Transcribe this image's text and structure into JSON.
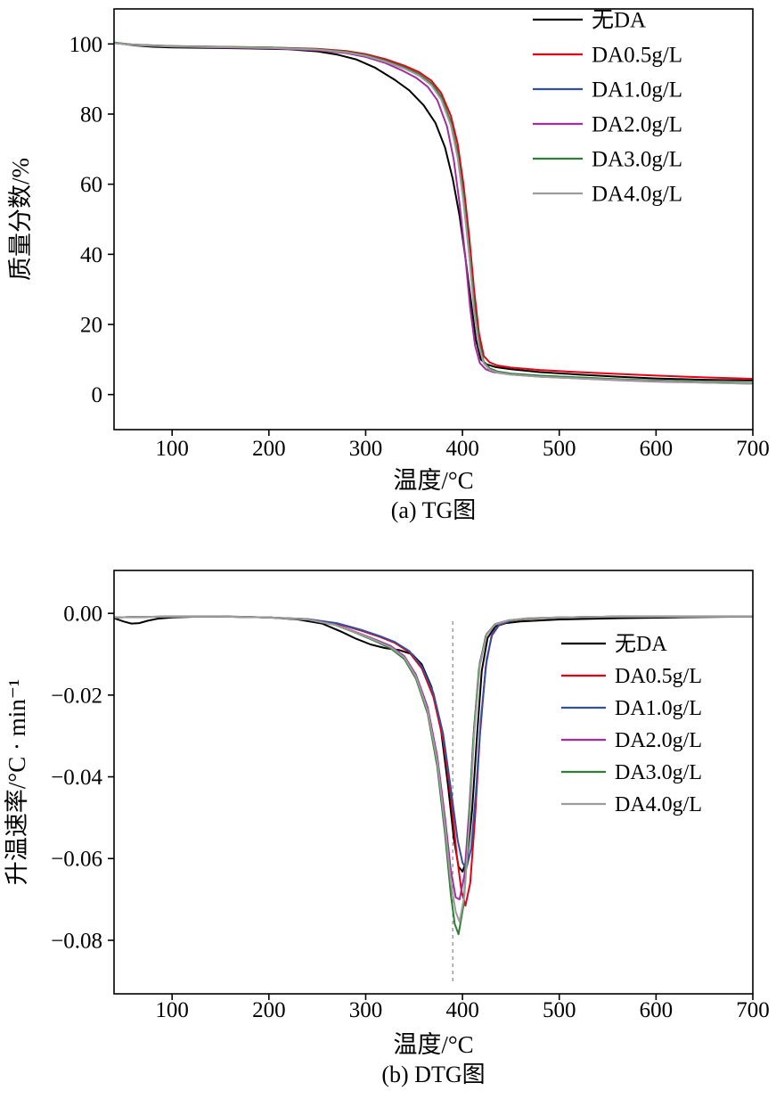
{
  "page": {
    "background": "#ffffff"
  },
  "chart_data": [
    {
      "type": "line",
      "panel": "a",
      "caption": "(a) TG图",
      "xlabel": "温度/°C",
      "ylabel": "质量分数/%",
      "xlim": [
        40,
        700
      ],
      "ylim": [
        -10,
        110
      ],
      "xticks": [
        {
          "v": 100,
          "label": "100"
        },
        {
          "v": 200,
          "label": "200"
        },
        {
          "v": 300,
          "label": "300"
        },
        {
          "v": 400,
          "label": "400"
        },
        {
          "v": 500,
          "label": "500"
        },
        {
          "v": 600,
          "label": "600"
        },
        {
          "v": 700,
          "label": "700"
        }
      ],
      "yticks": [
        {
          "v": 0,
          "label": "0"
        },
        {
          "v": 20,
          "label": "20"
        },
        {
          "v": 40,
          "label": "40"
        },
        {
          "v": 60,
          "label": "60"
        },
        {
          "v": 80,
          "label": "80"
        },
        {
          "v": 100,
          "label": "100"
        }
      ],
      "grid": false,
      "legend_position": "top-right",
      "series": [
        {
          "name": "无DA",
          "color": "#000000",
          "x": [
            40,
            60,
            80,
            100,
            140,
            180,
            220,
            250,
            270,
            290,
            310,
            330,
            345,
            360,
            372,
            382,
            390,
            397,
            403,
            409,
            414,
            419,
            425,
            435,
            450,
            480,
            520,
            560,
            600,
            650,
            700
          ],
          "y": [
            100.4,
            99.6,
            99.2,
            99.0,
            98.9,
            98.7,
            98.5,
            97.9,
            97.0,
            95.6,
            93.2,
            89.8,
            86.8,
            82.5,
            77.5,
            70.5,
            61.5,
            51.0,
            39.0,
            26.0,
            15.5,
            10.0,
            8.6,
            7.8,
            7.2,
            6.4,
            5.7,
            5.1,
            4.6,
            4.2,
            4.0
          ]
        },
        {
          "name": "DA0.5g/L",
          "color": "#e60012",
          "x": [
            40,
            60,
            100,
            150,
            200,
            250,
            280,
            300,
            320,
            340,
            355,
            368,
            378,
            388,
            395,
            401,
            407,
            412,
            417,
            422,
            428,
            436,
            450,
            480,
            520,
            560,
            600,
            650,
            700
          ],
          "y": [
            100.3,
            99.8,
            99.4,
            99.2,
            99.0,
            98.6,
            98.0,
            97.1,
            95.7,
            93.8,
            92.0,
            89.5,
            86.0,
            79.5,
            71.5,
            60.0,
            45.0,
            30.0,
            17.5,
            11.0,
            9.2,
            8.3,
            7.7,
            7.0,
            6.4,
            5.9,
            5.4,
            4.9,
            4.5
          ]
        },
        {
          "name": "DA1.0g/L",
          "color": "#3150a2",
          "x": [
            40,
            60,
            100,
            150,
            200,
            250,
            280,
            300,
            320,
            340,
            355,
            368,
            378,
            388,
            395,
            401,
            407,
            412,
            417,
            422,
            428,
            436,
            450,
            480,
            520,
            560,
            600,
            650,
            700
          ],
          "y": [
            100.3,
            99.7,
            99.3,
            99.1,
            98.9,
            98.4,
            97.7,
            96.7,
            95.2,
            93.1,
            91.2,
            88.5,
            84.5,
            77.0,
            68.0,
            55.5,
            40.0,
            25.0,
            14.0,
            9.0,
            7.3,
            6.5,
            5.9,
            5.3,
            4.8,
            4.3,
            3.9,
            3.5,
            3.2
          ]
        },
        {
          "name": "DA2.0g/L",
          "color": "#a52ba0",
          "x": [
            40,
            60,
            100,
            150,
            200,
            250,
            280,
            300,
            320,
            338,
            352,
            364,
            374,
            384,
            391,
            397,
            403,
            408,
            413,
            418,
            424,
            432,
            450,
            480,
            520,
            560,
            600,
            650,
            700
          ],
          "y": [
            100.3,
            99.7,
            99.3,
            99.0,
            98.8,
            98.2,
            97.4,
            96.3,
            94.6,
            92.4,
            90.4,
            87.8,
            84.0,
            76.5,
            67.0,
            54.5,
            39.0,
            24.5,
            14.0,
            9.0,
            7.2,
            6.4,
            5.7,
            5.1,
            4.6,
            4.1,
            3.7,
            3.4,
            3.1
          ]
        },
        {
          "name": "DA3.0g/L",
          "color": "#2f7e35",
          "x": [
            40,
            60,
            100,
            150,
            200,
            250,
            280,
            300,
            320,
            340,
            355,
            368,
            378,
            388,
            395,
            401,
            407,
            412,
            417,
            422,
            428,
            436,
            450,
            480,
            520,
            560,
            600,
            650,
            700
          ],
          "y": [
            100.4,
            99.8,
            99.4,
            99.2,
            99.0,
            98.5,
            97.8,
            96.8,
            95.3,
            93.3,
            91.4,
            88.8,
            85.0,
            77.8,
            68.8,
            56.5,
            41.0,
            26.0,
            15.0,
            9.4,
            7.5,
            6.6,
            6.0,
            5.4,
            4.9,
            4.4,
            4.0,
            3.6,
            3.3
          ]
        },
        {
          "name": "DA4.0g/L",
          "color": "#9c9c9c",
          "x": [
            40,
            60,
            100,
            150,
            200,
            250,
            280,
            300,
            320,
            340,
            355,
            368,
            378,
            388,
            395,
            401,
            407,
            412,
            417,
            422,
            428,
            436,
            450,
            480,
            520,
            560,
            600,
            650,
            700
          ],
          "y": [
            100.3,
            99.7,
            99.3,
            99.1,
            98.9,
            98.4,
            97.6,
            96.6,
            95.0,
            93.0,
            91.0,
            88.2,
            84.2,
            76.8,
            67.5,
            55.0,
            39.5,
            24.0,
            13.8,
            8.9,
            7.1,
            6.3,
            5.7,
            5.1,
            4.6,
            4.2,
            3.8,
            3.4,
            3.1
          ]
        }
      ]
    },
    {
      "type": "line",
      "panel": "b",
      "caption": "(b) DTG图",
      "xlabel": "温度/°C",
      "ylabel": "升温速率/°C · min⁻¹",
      "xlim": [
        40,
        700
      ],
      "ylim": [
        -0.0931,
        0.0105
      ],
      "xticks": [
        {
          "v": 100,
          "label": "100"
        },
        {
          "v": 200,
          "label": "200"
        },
        {
          "v": 300,
          "label": "300"
        },
        {
          "v": 400,
          "label": "400"
        },
        {
          "v": 500,
          "label": "500"
        },
        {
          "v": 600,
          "label": "600"
        },
        {
          "v": 700,
          "label": "700"
        }
      ],
      "yticks": [
        {
          "v": 0,
          "label": "0.00"
        },
        {
          "v": -0.02,
          "label": "−0.02"
        },
        {
          "v": -0.04,
          "label": "−0.04"
        },
        {
          "v": -0.06,
          "label": "−0.06"
        },
        {
          "v": -0.08,
          "label": "−0.08"
        }
      ],
      "grid": false,
      "legend_position": "right",
      "vline": {
        "x": 390,
        "style": "dashed",
        "color": "#999999"
      },
      "series": [
        {
          "name": "无DA",
          "color": "#000000",
          "x": [
            40,
            50,
            58,
            66,
            75,
            85,
            100,
            130,
            160,
            200,
            230,
            255,
            275,
            290,
            305,
            320,
            335,
            348,
            358,
            368,
            377,
            385,
            391,
            396,
            400,
            405,
            410,
            415,
            420,
            426,
            434,
            445,
            460,
            500,
            560,
            620,
            700
          ],
          "y": [
            -0.0012,
            -0.002,
            -0.0025,
            -0.0024,
            -0.0018,
            -0.0013,
            -0.001,
            -0.0008,
            -0.0008,
            -0.001,
            -0.0015,
            -0.0025,
            -0.0045,
            -0.0062,
            -0.0076,
            -0.0085,
            -0.009,
            -0.01,
            -0.0125,
            -0.018,
            -0.027,
            -0.042,
            -0.055,
            -0.062,
            -0.0632,
            -0.06,
            -0.048,
            -0.03,
            -0.014,
            -0.006,
            -0.0032,
            -0.0024,
            -0.002,
            -0.0015,
            -0.0012,
            -0.001,
            -0.0008
          ]
        },
        {
          "name": "DA0.5g/L",
          "color": "#e60012",
          "x": [
            40,
            60,
            100,
            150,
            200,
            240,
            270,
            295,
            315,
            330,
            345,
            358,
            370,
            380,
            388,
            394,
            399,
            403,
            408,
            413,
            418,
            424,
            430,
            438,
            450,
            470,
            500,
            560,
            620,
            700
          ],
          "y": [
            -0.001,
            -0.0009,
            -0.0008,
            -0.0008,
            -0.001,
            -0.0014,
            -0.0025,
            -0.0042,
            -0.0058,
            -0.0072,
            -0.0095,
            -0.0135,
            -0.0205,
            -0.031,
            -0.045,
            -0.059,
            -0.068,
            -0.0715,
            -0.066,
            -0.05,
            -0.03,
            -0.013,
            -0.0055,
            -0.0028,
            -0.0018,
            -0.0013,
            -0.001,
            -0.0008,
            -0.0008,
            -0.0008
          ]
        },
        {
          "name": "DA1.0g/L",
          "color": "#3150a2",
          "x": [
            40,
            60,
            100,
            150,
            200,
            240,
            270,
            295,
            315,
            330,
            345,
            358,
            370,
            380,
            388,
            395,
            400,
            404,
            409,
            414,
            419,
            425,
            431,
            439,
            452,
            472,
            505,
            560,
            620,
            700
          ],
          "y": [
            -0.001,
            -0.0009,
            -0.0008,
            -0.0008,
            -0.001,
            -0.0014,
            -0.0024,
            -0.004,
            -0.0056,
            -0.007,
            -0.0092,
            -0.013,
            -0.0195,
            -0.0295,
            -0.043,
            -0.0555,
            -0.061,
            -0.0625,
            -0.0575,
            -0.0435,
            -0.026,
            -0.0112,
            -0.0048,
            -0.0026,
            -0.0017,
            -0.0012,
            -0.001,
            -0.0008,
            -0.0008,
            -0.0008
          ]
        },
        {
          "name": "DA2.0g/L",
          "color": "#a52ba0",
          "x": [
            40,
            60,
            100,
            150,
            200,
            240,
            268,
            290,
            310,
            326,
            340,
            352,
            364,
            374,
            382,
            388,
            393,
            397,
            402,
            407,
            412,
            418,
            425,
            434,
            448,
            468,
            500,
            560,
            620,
            700
          ],
          "y": [
            -0.001,
            -0.0009,
            -0.0008,
            -0.0008,
            -0.001,
            -0.0015,
            -0.0027,
            -0.0046,
            -0.0064,
            -0.008,
            -0.0105,
            -0.015,
            -0.023,
            -0.035,
            -0.05,
            -0.063,
            -0.0695,
            -0.07,
            -0.064,
            -0.048,
            -0.028,
            -0.012,
            -0.005,
            -0.0026,
            -0.0017,
            -0.0012,
            -0.001,
            -0.0008,
            -0.0008,
            -0.0008
          ]
        },
        {
          "name": "DA3.0g/L",
          "color": "#2f7e35",
          "x": [
            40,
            60,
            100,
            150,
            200,
            240,
            268,
            290,
            310,
            326,
            340,
            352,
            364,
            374,
            382,
            388,
            392,
            396,
            401,
            406,
            411,
            417,
            424,
            433,
            447,
            467,
            500,
            560,
            620,
            700
          ],
          "y": [
            -0.001,
            -0.0009,
            -0.0008,
            -0.0008,
            -0.001,
            -0.0015,
            -0.0028,
            -0.0048,
            -0.0068,
            -0.0086,
            -0.0112,
            -0.016,
            -0.0245,
            -0.0375,
            -0.054,
            -0.069,
            -0.076,
            -0.0785,
            -0.0715,
            -0.054,
            -0.0315,
            -0.0135,
            -0.0055,
            -0.0028,
            -0.0018,
            -0.0013,
            -0.001,
            -0.0008,
            -0.0008,
            -0.0008
          ]
        },
        {
          "name": "DA4.0g/L",
          "color": "#9c9c9c",
          "x": [
            40,
            60,
            100,
            150,
            200,
            240,
            268,
            290,
            310,
            326,
            340,
            352,
            364,
            374,
            382,
            388,
            393,
            397,
            402,
            407,
            412,
            418,
            425,
            434,
            448,
            468,
            500,
            560,
            620,
            700
          ],
          "y": [
            -0.001,
            -0.0009,
            -0.0008,
            -0.0008,
            -0.001,
            -0.0015,
            -0.0028,
            -0.0047,
            -0.0066,
            -0.0083,
            -0.0108,
            -0.0155,
            -0.0238,
            -0.0362,
            -0.052,
            -0.066,
            -0.073,
            -0.0755,
            -0.069,
            -0.052,
            -0.03,
            -0.0128,
            -0.0052,
            -0.0027,
            -0.0017,
            -0.0012,
            -0.001,
            -0.0008,
            -0.0008,
            -0.0008
          ]
        }
      ]
    }
  ]
}
